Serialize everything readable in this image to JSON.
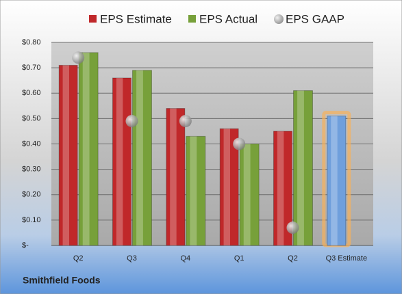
{
  "chart_data": {
    "type": "bar",
    "categories": [
      "Q2",
      "Q3",
      "Q4",
      "Q1",
      "Q2",
      "Q3 Estimate"
    ],
    "series": [
      {
        "name": "EPS Estimate",
        "color": "#c0282a",
        "values": [
          0.71,
          0.66,
          0.54,
          0.46,
          0.45,
          0.51
        ]
      },
      {
        "name": "EPS Actual",
        "color": "#77a03a",
        "values": [
          0.76,
          0.69,
          0.43,
          0.4,
          0.61,
          null
        ]
      },
      {
        "name": "EPS GAAP",
        "color": "#9a9a9a",
        "values": [
          0.74,
          0.49,
          0.49,
          0.4,
          0.07,
          null
        ],
        "marker": "bubble"
      }
    ],
    "highlight": {
      "index": 5,
      "color": "#6f9fdc",
      "glow": "#f6b05a"
    },
    "ylim": [
      0,
      0.8
    ],
    "yticks": [
      {
        "value": 0,
        "label": "$-"
      },
      {
        "value": 0.1,
        "label": "$0.10"
      },
      {
        "value": 0.2,
        "label": "$0.20"
      },
      {
        "value": 0.3,
        "label": "$0.30"
      },
      {
        "value": 0.4,
        "label": "$0.40"
      },
      {
        "value": 0.5,
        "label": "$0.50"
      },
      {
        "value": 0.6,
        "label": "$0.60"
      },
      {
        "value": 0.7,
        "label": "$0.70"
      },
      {
        "value": 0.8,
        "label": "$0.80"
      }
    ],
    "grid": true,
    "footer": "Smithfield Foods"
  }
}
